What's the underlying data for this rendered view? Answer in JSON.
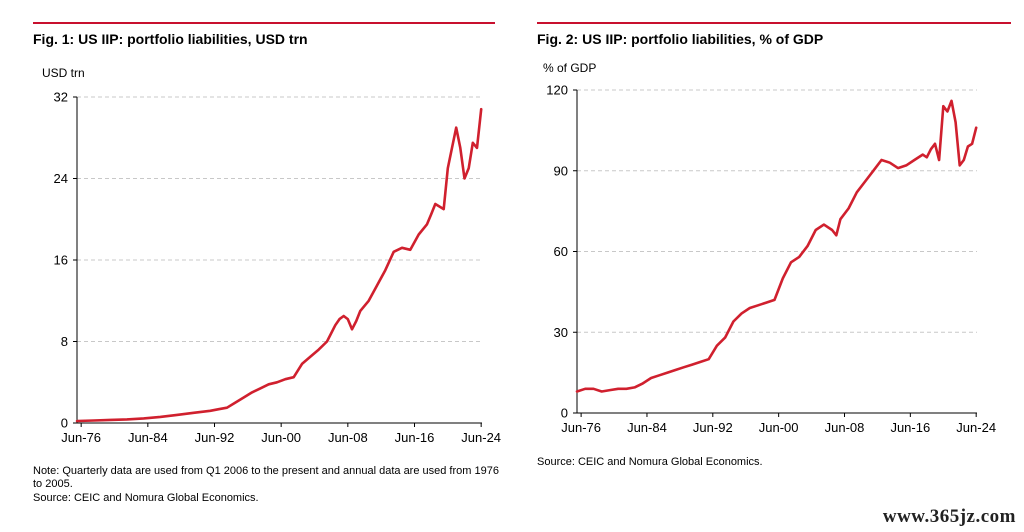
{
  "charts": [
    {
      "title": "Fig. 1: US IIP: portfolio liabilities, USD trn",
      "unit_label": "USD trn",
      "note": "Note: Quarterly data are used from Q1 2006 to the present and annual data are used from 1976 to 2005.",
      "source": "Source: CEIC and Nomura Global Economics."
    },
    {
      "title": "Fig. 2: US IIP: portfolio liabilities, % of GDP",
      "unit_label": "% of GDP",
      "source": "Source: CEIC and Nomura Global Economics."
    }
  ],
  "watermark": "www.365jz.com",
  "colors": {
    "line": "#d0202e",
    "grid": "#c8c8c8",
    "rule": "#c8102e",
    "axis": "#000000"
  },
  "chart_data": [
    {
      "type": "line",
      "title": "Fig. 1: US IIP: portfolio liabilities, USD trn",
      "ylabel": "USD trn",
      "xlim": [
        1976,
        2024.6
      ],
      "ylim": [
        0,
        32
      ],
      "yticks": [
        0,
        8,
        16,
        24,
        32
      ],
      "xticks": [
        {
          "label": "Jun-76",
          "x": 1976.5
        },
        {
          "label": "Jun-84",
          "x": 1984.5
        },
        {
          "label": "Jun-92",
          "x": 1992.5
        },
        {
          "label": "Jun-00",
          "x": 2000.5
        },
        {
          "label": "Jun-08",
          "x": 2008.5
        },
        {
          "label": "Jun-16",
          "x": 2016.5
        },
        {
          "label": "Jun-24",
          "x": 2024.5
        }
      ],
      "grid": true,
      "series": [
        {
          "x": [
            1976,
            1978,
            1980,
            1982,
            1984,
            1986,
            1988,
            1990,
            1992,
            1993,
            1994,
            1995,
            1996,
            1997,
            1998,
            1999,
            2000,
            2001,
            2002,
            2003,
            2004,
            2005,
            2006,
            2007,
            2007.5,
            2008,
            2008.5,
            2009,
            2009.5,
            2010,
            2011,
            2012,
            2013,
            2014,
            2015,
            2016,
            2017,
            2018,
            2018.5,
            2019,
            2020,
            2020.5,
            2021,
            2021.5,
            2022,
            2022.5,
            2023,
            2023.5,
            2024,
            2024.5
          ],
          "y": [
            0.2,
            0.25,
            0.3,
            0.35,
            0.45,
            0.6,
            0.8,
            1.0,
            1.2,
            1.35,
            1.5,
            2.0,
            2.5,
            3.0,
            3.4,
            3.8,
            4.0,
            4.3,
            4.5,
            5.8,
            6.5,
            7.2,
            8.0,
            9.6,
            10.2,
            10.5,
            10.2,
            9.2,
            10.0,
            11.0,
            12.0,
            13.5,
            15.0,
            16.8,
            17.2,
            17.0,
            18.5,
            19.5,
            20.5,
            21.5,
            21.0,
            25.0,
            27.0,
            29.0,
            27.0,
            24.0,
            25.0,
            27.5,
            27.0,
            30.8
          ]
        }
      ]
    },
    {
      "type": "line",
      "title": "Fig. 2: US IIP: portfolio liabilities, % of GDP",
      "ylabel": "% of GDP",
      "xlim": [
        1976,
        2024.6
      ],
      "ylim": [
        0,
        120
      ],
      "yticks": [
        0,
        30,
        60,
        90,
        120
      ],
      "xticks": [
        {
          "label": "Jun-76",
          "x": 1976.5
        },
        {
          "label": "Jun-84",
          "x": 1984.5
        },
        {
          "label": "Jun-92",
          "x": 1992.5
        },
        {
          "label": "Jun-00",
          "x": 2000.5
        },
        {
          "label": "Jun-08",
          "x": 2008.5
        },
        {
          "label": "Jun-16",
          "x": 2016.5
        },
        {
          "label": "Jun-24",
          "x": 2024.5
        }
      ],
      "grid": true,
      "series": [
        {
          "x": [
            1976,
            1977,
            1978,
            1979,
            1980,
            1981,
            1982,
            1983,
            1984,
            1985,
            1986,
            1987,
            1988,
            1989,
            1990,
            1991,
            1992,
            1993,
            1994,
            1995,
            1996,
            1997,
            1998,
            1999,
            2000,
            2001,
            2002,
            2003,
            2004,
            2005,
            2006,
            2007,
            2007.5,
            2008,
            2009,
            2010,
            2011,
            2012,
            2013,
            2014,
            2015,
            2016,
            2017,
            2018,
            2018.5,
            2019,
            2019.5,
            2020,
            2020.5,
            2021,
            2021.5,
            2022,
            2022.5,
            2023,
            2023.5,
            2024,
            2024.5
          ],
          "y": [
            8,
            9,
            9,
            8,
            8.5,
            9,
            9,
            9.5,
            11,
            13,
            14,
            15,
            16,
            17,
            18,
            19,
            20,
            25,
            28,
            34,
            37,
            39,
            40,
            41,
            42,
            50,
            56,
            58,
            62,
            68,
            70,
            68,
            66,
            72,
            76,
            82,
            86,
            90,
            94,
            93,
            91,
            92,
            94,
            96,
            95,
            98,
            100,
            94,
            114,
            112,
            116,
            108,
            92,
            94,
            99,
            100,
            106
          ]
        }
      ]
    }
  ]
}
